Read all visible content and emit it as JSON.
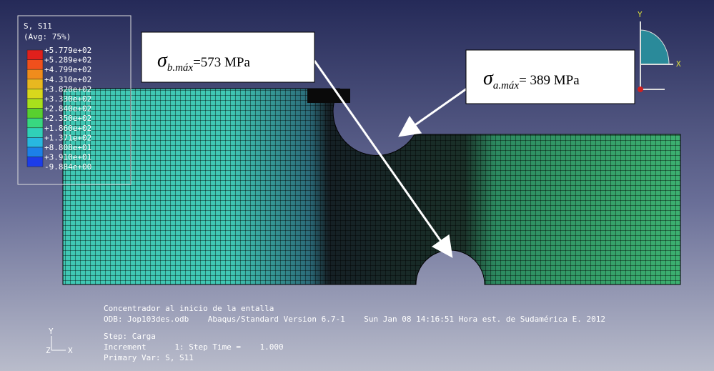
{
  "legend": {
    "title": "S, S11",
    "subtitle": "(Avg: 75%)",
    "labels": [
      "+5.779e+02",
      "+5.289e+02",
      "+4.799e+02",
      "+4.310e+02",
      "+3.820e+02",
      "+3.330e+02",
      "+2.840e+02",
      "+2.350e+02",
      "+1.860e+02",
      "+1.371e+02",
      "+8.808e+01",
      "+3.910e+01",
      "-9.884e+00"
    ],
    "colors": [
      "#e0201c",
      "#f0501c",
      "#f08c1c",
      "#e8b820",
      "#d8d81c",
      "#a8e01c",
      "#58d030",
      "#38d880",
      "#30d0b8",
      "#28b8e0",
      "#1c80e8",
      "#1c3ce8"
    ]
  },
  "annotations": [
    {
      "symbol": "σ",
      "subscript": "b.máx",
      "text": "=573 MPa"
    },
    {
      "symbol": "σ",
      "subscript": "a.máx",
      "text": "= 389 MPa"
    }
  ],
  "info": [
    "Concentrador al inicio de la entalla",
    "ODB: Jop103des.odb    Abaqus/Standard Version 6.7-1    Sun Jan 08 14:16:51 Hora est. de Sudamérica E. 2012",
    "Step: Carga",
    "Increment      1: Step Time =    1.000",
    "Primary Var: S, S11"
  ],
  "triad": {
    "y": "Y",
    "x": "X",
    "z": "Z"
  },
  "view_triad": {
    "y": "Y",
    "x": "X"
  }
}
